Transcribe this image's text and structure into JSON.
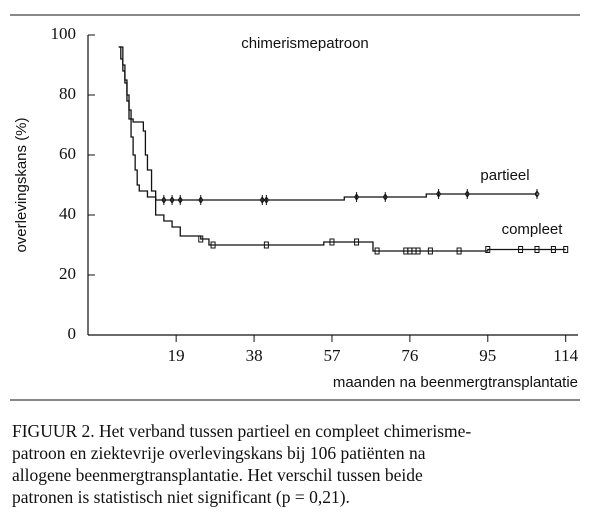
{
  "chart_data": {
    "type": "line",
    "step": true,
    "annotation": "chimerismepatroon",
    "xlabel": "maanden na beenmergtransplantatie",
    "ylabel": "overlevingskans (%)",
    "xlim": [
      -2.5,
      117
    ],
    "ylim": [
      0,
      100
    ],
    "xticks": [
      19,
      38,
      57,
      76,
      95,
      114
    ],
    "yticks": [
      0,
      20,
      40,
      60,
      80,
      100
    ],
    "series": [
      {
        "name": "partieel",
        "color": "#111111",
        "x": [
          5,
          6,
          6.5,
          7,
          7.5,
          8,
          8.5,
          11,
          11.5,
          12,
          13,
          14,
          60,
          80
        ],
        "values": [
          96,
          90,
          85,
          80,
          75,
          72,
          71,
          68,
          60,
          55,
          48,
          45,
          46,
          47
        ],
        "censored": [
          16,
          18,
          20,
          25,
          40,
          41,
          63,
          70,
          83,
          90,
          107
        ]
      },
      {
        "name": "compleet",
        "color": "#111111",
        "x": [
          5,
          5.5,
          6,
          6.5,
          7,
          7.5,
          8,
          8.5,
          9,
          9.5,
          10,
          12,
          14,
          16,
          18,
          20,
          25,
          27,
          55,
          67,
          95
        ],
        "values": [
          96,
          92,
          88,
          84,
          78,
          72,
          66,
          60,
          55,
          50,
          48,
          46,
          40,
          38,
          36,
          33,
          32,
          30,
          31,
          28,
          28.5
        ],
        "censored": [
          25,
          28,
          41,
          57,
          63,
          68,
          75,
          76,
          77,
          78,
          81,
          88,
          95,
          103,
          107,
          111,
          114
        ]
      }
    ]
  },
  "caption": {
    "lines": [
      "FIGUUR 2. Het verband tussen partieel en compleet chimerisme-",
      "patroon en ziektevrije overlevingskans bij 106 patiënten na",
      "allogene beenmergtransplantatie. Het verschil tussen beide",
      "patronen is statistisch niet significant (p = 0,21)."
    ]
  }
}
